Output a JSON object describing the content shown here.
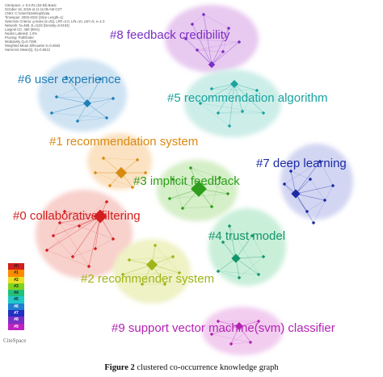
{
  "meta_lines": [
    "CiteSpace, v. 5.5.R1 (64-bit) Basic",
    "October 18, 2019 at 11:11:06 AM CST",
    "CNKI: C:\\Users\\Desktop\\Data",
    "Timespan: 2003-2019 (Slice Length=1)",
    "Selection Criteria: g-index (k=25), LRF=3.0, L/N=10, LBY=5, e=1.0",
    "Network: N=469, E=1133 (Density=0.0103)",
    "Largest CC: 450 (95%)",
    "Nodes Labeled: 1.0%",
    "Pruning: Pathfinder",
    "Modularity Q=0.7286",
    "Weighted Mean Silhouette S=0.4563",
    "Harmonic Mean(Q, S)=0.5612"
  ],
  "clusters": [
    {
      "id": "#8",
      "label": "#8 feedback credibility",
      "color": "#7b2fc4",
      "blob": "#e8c9f0"
    },
    {
      "id": "#6",
      "label": "#6 user experience",
      "color": "#1f7fb8",
      "blob": "#cfe3f3"
    },
    {
      "id": "#5",
      "label": "#5 recommendation algorithm",
      "color": "#1aa3a0",
      "blob": "#cdeee8"
    },
    {
      "id": "#1",
      "label": "#1 recommendation system",
      "color": "#d98a12",
      "blob": "#fbe2c2"
    },
    {
      "id": "#7",
      "label": "#7 deep learning",
      "color": "#1c2aa6",
      "blob": "#d2d6f2"
    },
    {
      "id": "#3",
      "label": "#3 implicit feedback",
      "color": "#2e9e1c",
      "blob": "#d5efc8"
    },
    {
      "id": "#0",
      "label": "#0 collaborative filtering",
      "color": "#d21f1f",
      "blob": "#f8d0cc"
    },
    {
      "id": "#4",
      "label": "#4 trust model",
      "color": "#12956a",
      "blob": "#c9efd9"
    },
    {
      "id": "#2",
      "label": "#2 recommender system",
      "color": "#9fb51a",
      "blob": "#eef2c4"
    },
    {
      "id": "#9",
      "label": "#9 support vector machine(svm) classifier",
      "color": "#b323b3",
      "blob": "#f2cdf0"
    }
  ],
  "legend": [
    "#0",
    "#1",
    "#2",
    "#3",
    "#4",
    "#5",
    "#6",
    "#7",
    "#8",
    "#9"
  ],
  "legend_colors": [
    "#d21f1f",
    "#ff8c00",
    "#e8e020",
    "#7ed321",
    "#22c07a",
    "#20c8c8",
    "#1f7fd0",
    "#2030c0",
    "#7a2fc4",
    "#c020c0"
  ],
  "logo_text": "CiteSpace",
  "caption_bold": "Figure 2",
  "caption_text": " clustered co-occurrence knowledge graph"
}
